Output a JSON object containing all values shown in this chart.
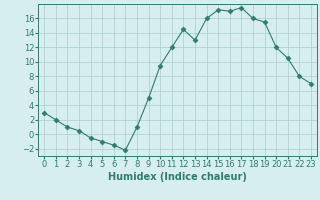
{
  "x": [
    0,
    1,
    2,
    3,
    4,
    5,
    6,
    7,
    8,
    9,
    10,
    11,
    12,
    13,
    14,
    15,
    16,
    17,
    18,
    19,
    20,
    21,
    22,
    23
  ],
  "y": [
    3,
    2,
    1,
    0.5,
    -0.5,
    -1,
    -1.5,
    -2.2,
    1,
    5,
    9.5,
    12,
    14.5,
    13,
    16,
    17.2,
    17,
    17.5,
    16,
    15.5,
    12,
    10.5,
    8,
    7
  ],
  "line_color": "#2e7d6e",
  "marker": "D",
  "marker_size": 2.5,
  "bg_color": "#d6eef0",
  "grid_color": "#aacccc",
  "xlabel": "Humidex (Indice chaleur)",
  "xlim": [
    -0.5,
    23.5
  ],
  "ylim": [
    -3,
    18
  ],
  "yticks": [
    -2,
    0,
    2,
    4,
    6,
    8,
    10,
    12,
    14,
    16
  ],
  "xticks": [
    0,
    1,
    2,
    3,
    4,
    5,
    6,
    7,
    8,
    9,
    10,
    11,
    12,
    13,
    14,
    15,
    16,
    17,
    18,
    19,
    20,
    21,
    22,
    23
  ],
  "label_fontsize": 7,
  "tick_fontsize": 6
}
